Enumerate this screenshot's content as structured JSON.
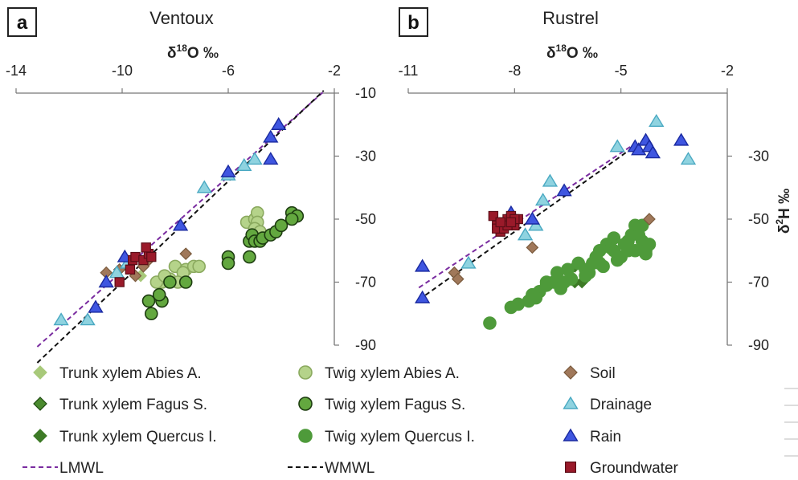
{
  "panels": [
    {
      "letter": "a",
      "title": "Ventoux"
    },
    {
      "letter": "b",
      "title": "Rustrel"
    }
  ],
  "chart_data": [
    {
      "type": "scatter",
      "title": "Ventoux",
      "panel_label": "a",
      "xlabel": "δ18O ‰",
      "ylabel": "",
      "x_ticks": [
        "-14",
        "-10",
        "-6",
        "-2"
      ],
      "y_ticks": [
        "-10",
        "-30",
        "-50",
        "-70",
        "-90"
      ],
      "xlim": [
        -14,
        -2
      ],
      "ylim": [
        -90,
        -10
      ],
      "axes_position": "top-right",
      "lines": [
        {
          "name": "LMWL",
          "slope": 7.5,
          "intercept": 8.5
        },
        {
          "name": "WMWL",
          "slope": 8.0,
          "intercept": 10.0
        }
      ],
      "series": [
        {
          "name": "Trunk xylem Abies A.",
          "marker": "diamond",
          "fill": "#a8c97a",
          "stroke": "#a8c97a",
          "points": [
            [
              -9.3,
              -68
            ]
          ]
        },
        {
          "name": "Trunk xylem Fagus S.",
          "marker": "diamond",
          "fill": "#4a8a2e",
          "stroke": "#1f4a12",
          "points": []
        },
        {
          "name": "Trunk xylem Quercus I.",
          "marker": "diamond",
          "fill": "#3d7a26",
          "stroke": "#3d7a26",
          "points": []
        },
        {
          "name": "Twig xylem Abies A.",
          "marker": "circle",
          "fill": "#b5d38a",
          "stroke": "#8aa95e",
          "points": [
            [
              -8.0,
              -65
            ],
            [
              -7.6,
              -66
            ],
            [
              -7.3,
              -65
            ],
            [
              -7.1,
              -65
            ],
            [
              -8.5,
              -70
            ],
            [
              -8.2,
              -69
            ],
            [
              -7.7,
              -67
            ],
            [
              -7.9,
              -70
            ],
            [
              -8.7,
              -70
            ],
            [
              -5.3,
              -51
            ],
            [
              -5.0,
              -50
            ],
            [
              -4.9,
              -48
            ],
            [
              -4.9,
              -51
            ],
            [
              -5.0,
              -53
            ],
            [
              -4.8,
              -54
            ],
            [
              -8.4,
              -68
            ]
          ]
        },
        {
          "name": "Twig xylem Fagus S.",
          "marker": "circle",
          "fill": "#63a83f",
          "stroke": "#1d3d10",
          "points": [
            [
              -9.0,
              -76
            ],
            [
              -8.9,
              -80
            ],
            [
              -8.5,
              -76
            ],
            [
              -8.6,
              -74
            ],
            [
              -8.2,
              -70
            ],
            [
              -7.6,
              -70
            ],
            [
              -6.0,
              -62
            ],
            [
              -6.0,
              -64
            ],
            [
              -5.2,
              -57
            ],
            [
              -5.1,
              -55
            ],
            [
              -5.0,
              -57
            ],
            [
              -4.8,
              -57
            ],
            [
              -4.7,
              -56
            ],
            [
              -4.4,
              -55
            ],
            [
              -4.2,
              -54
            ],
            [
              -4.0,
              -52
            ],
            [
              -3.6,
              -48
            ],
            [
              -3.4,
              -49
            ],
            [
              -3.6,
              -50
            ],
            [
              -5.2,
              -62
            ]
          ]
        },
        {
          "name": "Twig xylem Quercus I.",
          "marker": "circle",
          "fill": "#4e9a3a",
          "stroke": "#4e9a3a",
          "points": []
        },
        {
          "name": "Soil",
          "marker": "diamond",
          "fill": "#a0785a",
          "stroke": "#7a5a3c",
          "points": [
            [
              -10.6,
              -67
            ],
            [
              -10.1,
              -66
            ],
            [
              -9.5,
              -68
            ],
            [
              -9.2,
              -65
            ],
            [
              -9.0,
              -63
            ],
            [
              -7.6,
              -61
            ]
          ]
        },
        {
          "name": "Drainage",
          "marker": "triangle",
          "fill": "#8fd3e0",
          "stroke": "#4aa9c2",
          "points": [
            [
              -12.3,
              -82
            ],
            [
              -11.3,
              -82
            ],
            [
              -10.2,
              -67
            ],
            [
              -9.8,
              -64
            ],
            [
              -6.9,
              -40
            ],
            [
              -6.0,
              -36
            ],
            [
              -5.4,
              -33
            ],
            [
              -5.0,
              -31
            ]
          ]
        },
        {
          "name": "Rain",
          "marker": "triangle",
          "fill": "#3f56e0",
          "stroke": "#1a2aa0",
          "points": [
            [
              -11.0,
              -78
            ],
            [
              -10.6,
              -70
            ],
            [
              -9.9,
              -62
            ],
            [
              -7.8,
              -52
            ],
            [
              -6.0,
              -35
            ],
            [
              -4.4,
              -31
            ],
            [
              -4.4,
              -24
            ],
            [
              -4.1,
              -20
            ]
          ]
        },
        {
          "name": "Groundwater",
          "marker": "square",
          "fill": "#9a1a2a",
          "stroke": "#5c0d17",
          "points": [
            [
              -10.1,
              -70
            ],
            [
              -9.7,
              -66
            ],
            [
              -9.6,
              -63
            ],
            [
              -9.5,
              -62
            ],
            [
              -9.2,
              -63
            ],
            [
              -9.0,
              -61
            ],
            [
              -8.9,
              -62
            ],
            [
              -9.1,
              -59
            ]
          ]
        }
      ]
    },
    {
      "type": "scatter",
      "title": "Rustrel",
      "panel_label": "b",
      "xlabel": "δ18O ‰",
      "ylabel": "δ2H ‰",
      "x_ticks": [
        "-11",
        "-8",
        "-5",
        "-2"
      ],
      "y_ticks": [
        "-30",
        "-50",
        "-70",
        "-90"
      ],
      "xlim": [
        -11,
        -2
      ],
      "ylim": [
        -90,
        -10
      ],
      "axes_position": "top-right",
      "lines": [
        {
          "name": "LMWL",
          "slope": 7.5,
          "intercept": 8.5
        },
        {
          "name": "WMWL",
          "slope": 8.0,
          "intercept": 10.0
        }
      ],
      "series": [
        {
          "name": "Trunk xylem Abies A.",
          "marker": "diamond",
          "fill": "#a8c97a",
          "stroke": "#a8c97a",
          "points": []
        },
        {
          "name": "Trunk xylem Fagus S.",
          "marker": "diamond",
          "fill": "#4a8a2e",
          "stroke": "#1f4a12",
          "points": []
        },
        {
          "name": "Trunk xylem Quercus I.",
          "marker": "diamond",
          "fill": "#3d7a26",
          "stroke": "#3d7a26",
          "points": [
            [
              -6.3,
              -65
            ],
            [
              -6.3,
              -70
            ],
            [
              -6.1,
              -70
            ]
          ]
        },
        {
          "name": "Twig xylem Abies A.",
          "marker": "circle",
          "fill": "#b5d38a",
          "stroke": "#8aa95e",
          "points": []
        },
        {
          "name": "Twig xylem Fagus S.",
          "marker": "circle",
          "fill": "#63a83f",
          "stroke": "#1d3d10",
          "points": []
        },
        {
          "name": "Twig xylem Quercus I.",
          "marker": "circle",
          "fill": "#4e9a3a",
          "stroke": "#4e9a3a",
          "points": [
            [
              -8.7,
              -83
            ],
            [
              -8.1,
              -78
            ],
            [
              -7.9,
              -77
            ],
            [
              -7.6,
              -76
            ],
            [
              -7.5,
              -74
            ],
            [
              -7.3,
              -73
            ],
            [
              -7.1,
              -70
            ],
            [
              -6.9,
              -70
            ],
            [
              -6.8,
              -67
            ],
            [
              -6.7,
              -72
            ],
            [
              -6.5,
              -66
            ],
            [
              -6.4,
              -69
            ],
            [
              -6.2,
              -64
            ],
            [
              -6.0,
              -66
            ],
            [
              -5.9,
              -67
            ],
            [
              -5.8,
              -64
            ],
            [
              -5.7,
              -62
            ],
            [
              -5.6,
              -60
            ],
            [
              -5.5,
              -65
            ],
            [
              -5.4,
              -58
            ],
            [
              -5.3,
              -59
            ],
            [
              -5.1,
              -63
            ],
            [
              -5.0,
              -62
            ],
            [
              -4.9,
              -58
            ],
            [
              -4.8,
              -57
            ],
            [
              -4.7,
              -55
            ],
            [
              -4.6,
              -52
            ],
            [
              -4.5,
              -55
            ],
            [
              -4.4,
              -57
            ],
            [
              -4.3,
              -60
            ],
            [
              -4.6,
              -60
            ],
            [
              -4.4,
              -52
            ],
            [
              -4.3,
              -61
            ],
            [
              -5.2,
              -56
            ],
            [
              -4.2,
              -58
            ],
            [
              -6.6,
              -70
            ],
            [
              -6.0,
              -68
            ],
            [
              -5.6,
              -64
            ],
            [
              -5.2,
              -60
            ],
            [
              -4.8,
              -60
            ],
            [
              -7.1,
              -71
            ],
            [
              -7.4,
              -75
            ]
          ]
        },
        {
          "name": "Soil",
          "marker": "diamond",
          "fill": "#a0785a",
          "stroke": "#7a5a3c",
          "points": [
            [
              -9.7,
              -67
            ],
            [
              -9.6,
              -69
            ],
            [
              -7.5,
              -59
            ],
            [
              -4.2,
              -50
            ]
          ]
        },
        {
          "name": "Drainage",
          "marker": "triangle",
          "fill": "#8fd3e0",
          "stroke": "#4aa9c2",
          "points": [
            [
              -9.3,
              -64
            ],
            [
              -7.7,
              -55
            ],
            [
              -7.4,
              -52
            ],
            [
              -7.2,
              -44
            ],
            [
              -7.0,
              -38
            ],
            [
              -5.1,
              -27
            ],
            [
              -4.0,
              -19
            ],
            [
              -3.1,
              -31
            ]
          ]
        },
        {
          "name": "Rain",
          "marker": "triangle",
          "fill": "#3f56e0",
          "stroke": "#1a2aa0",
          "points": [
            [
              -10.6,
              -65
            ],
            [
              -10.6,
              -75
            ],
            [
              -8.1,
              -48
            ],
            [
              -7.5,
              -50
            ],
            [
              -6.6,
              -41
            ],
            [
              -4.6,
              -27
            ],
            [
              -4.5,
              -28
            ],
            [
              -4.3,
              -25
            ],
            [
              -4.2,
              -27
            ],
            [
              -4.1,
              -29
            ],
            [
              -3.3,
              -25
            ]
          ]
        },
        {
          "name": "Groundwater",
          "marker": "square",
          "fill": "#9a1a2a",
          "stroke": "#5c0d17",
          "points": [
            [
              -8.6,
              -49
            ],
            [
              -8.5,
              -52
            ],
            [
              -8.4,
              -54
            ],
            [
              -8.3,
              -51
            ],
            [
              -8.2,
              -50
            ],
            [
              -8.1,
              -49
            ],
            [
              -8.0,
              -52
            ],
            [
              -7.9,
              -50
            ],
            [
              -8.5,
              -53
            ],
            [
              -8.3,
              -53
            ],
            [
              -8.0,
              -50
            ],
            [
              -8.2,
              -52
            ],
            [
              -8.4,
              -51
            ],
            [
              -8.1,
              -51
            ]
          ]
        }
      ]
    }
  ],
  "legend": [
    {
      "label": "Trunk xylem Abies A.",
      "marker": "diamond",
      "fill": "#a8c97a",
      "stroke": "#a8c97a"
    },
    {
      "label": "Twig xylem Abies A.",
      "marker": "circle",
      "fill": "#b5d38a",
      "stroke": "#8aa95e"
    },
    {
      "label": "Soil",
      "marker": "diamond",
      "fill": "#a0785a",
      "stroke": "#7a5a3c"
    },
    {
      "label": "Trunk xylem Fagus S.",
      "marker": "diamond",
      "fill": "#4a8a2e",
      "stroke": "#1f4a12"
    },
    {
      "label": "Twig xylem Fagus S.",
      "marker": "circle",
      "fill": "#63a83f",
      "stroke": "#1d3d10"
    },
    {
      "label": "Drainage",
      "marker": "triangle",
      "fill": "#8fd3e0",
      "stroke": "#4aa9c2"
    },
    {
      "label": "Trunk xylem Quercus I.",
      "marker": "diamond",
      "fill": "#3d7a26",
      "stroke": "#3d7a26"
    },
    {
      "label": "Twig xylem Quercus I.",
      "marker": "circle",
      "fill": "#4e9a3a",
      "stroke": "#4e9a3a"
    },
    {
      "label": "Rain",
      "marker": "triangle",
      "fill": "#3f56e0",
      "stroke": "#1a2aa0"
    },
    {
      "label": "LMWL",
      "marker": "dash",
      "fill": "#7a2ca0",
      "stroke": "#7a2ca0"
    },
    {
      "label": "WMWL",
      "marker": "dash",
      "fill": "#111111",
      "stroke": "#111111"
    },
    {
      "label": "Groundwater",
      "marker": "square",
      "fill": "#9a1a2a",
      "stroke": "#5c0d17"
    }
  ],
  "colors": {
    "lmwl": "#7a2ca0",
    "wmwl": "#111111",
    "axis": "#777777"
  }
}
